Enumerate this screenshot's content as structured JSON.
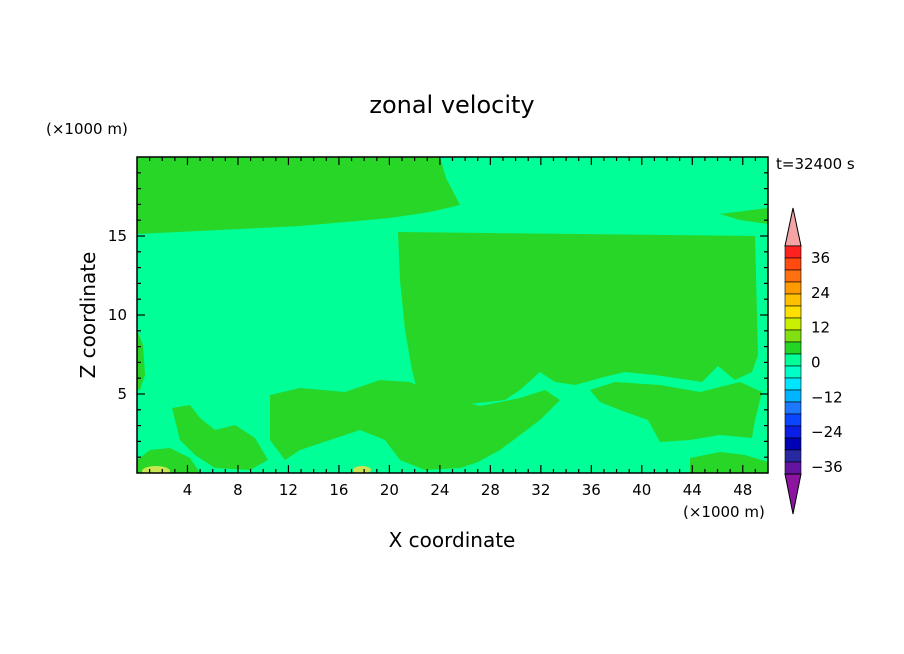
{
  "chart_data": {
    "type": "heatmap",
    "title": "zonal velocity",
    "xlabel": "X coordinate",
    "ylabel": "Z coordinate",
    "x_unit": "(×1000 m)",
    "y_unit": "(×1000 m)",
    "time_label": "t=32400 s",
    "xlim": [
      0,
      50
    ],
    "ylim": [
      0,
      20
    ],
    "x_ticks": [
      4,
      8,
      12,
      16,
      20,
      24,
      28,
      32,
      36,
      40,
      44,
      48
    ],
    "y_ticks": [
      5,
      10,
      15
    ],
    "colorbar": {
      "ticks": [
        36,
        24,
        12,
        0,
        -12,
        -24,
        -36
      ],
      "colors": [
        "#f4a4a4",
        "#ff2020",
        "#ff4a10",
        "#ff7010",
        "#ff9a00",
        "#ffc000",
        "#ffe000",
        "#c8f000",
        "#80e010",
        "#24d624",
        "#00ff96",
        "#00ffc8",
        "#00e6ff",
        "#00b4ff",
        "#1e78ff",
        "#0a46ff",
        "#0a1ee6",
        "#0000b4",
        "#2828a0",
        "#6414a0",
        "#8c14a0"
      ]
    },
    "field_colors": {
      "positive_weak": "#28d628",
      "near_zero": "#00ff96",
      "positive_moderate": "#c8e650"
    }
  }
}
